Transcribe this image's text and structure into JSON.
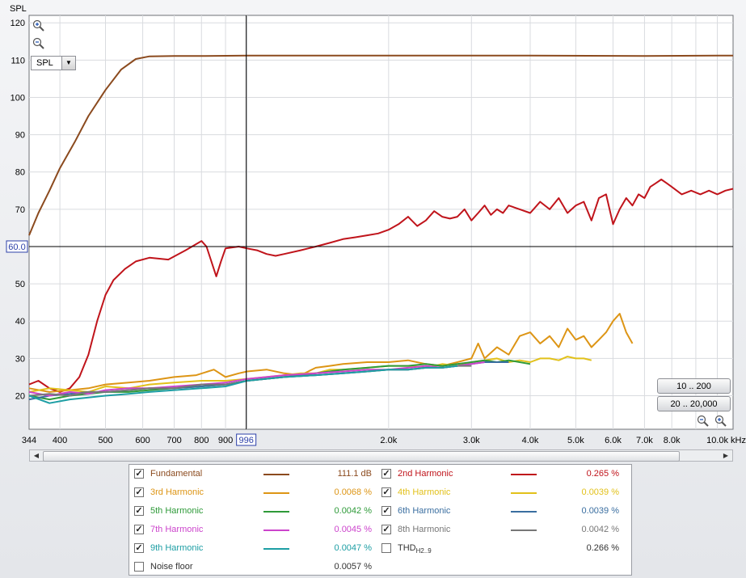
{
  "colors": {
    "fundamental": "#8b4a1e",
    "h2": "#c0141b",
    "h3": "#dd9515",
    "h4": "#e2c11a",
    "h5": "#2e9a39",
    "h6": "#3a6ea0",
    "h7": "#cc44cc",
    "h8": "#777777",
    "h9": "#1d9ea4",
    "label_default": "#333333"
  },
  "chart_data": {
    "type": "line",
    "ylabel": "SPL",
    "xscale": "log",
    "xunit": "kHz",
    "ylim": [
      11,
      122
    ],
    "xlim": [
      344,
      10800
    ],
    "yticks": [
      20,
      30,
      40,
      50,
      60,
      70,
      80,
      90,
      100,
      110,
      120
    ],
    "ytick_labels": [
      "20",
      "30",
      "40",
      "50",
      "60",
      "70",
      "80",
      "90",
      "100",
      "110",
      "120"
    ],
    "xticks": [
      {
        "v": 344,
        "label": "344"
      },
      {
        "v": 400,
        "label": "400"
      },
      {
        "v": 500,
        "label": "500"
      },
      {
        "v": 600,
        "label": "600"
      },
      {
        "v": 700,
        "label": "700"
      },
      {
        "v": 800,
        "label": "800"
      },
      {
        "v": 900,
        "label": "900"
      },
      {
        "v": 2000,
        "label": "2.0k"
      },
      {
        "v": 3000,
        "label": "3.0k"
      },
      {
        "v": 4000,
        "label": "4.0k"
      },
      {
        "v": 5000,
        "label": "5.0k"
      },
      {
        "v": 6000,
        "label": "6.0k"
      },
      {
        "v": 7000,
        "label": "7.0k"
      },
      {
        "v": 8000,
        "label": "8.0k"
      },
      {
        "v": 10000,
        "label": "10.0k"
      }
    ],
    "grid": true,
    "cursor": {
      "x": 996,
      "x_label": "996",
      "y": 60,
      "y_label": "60.0"
    },
    "series": [
      {
        "key": "fundamental",
        "x": [
          344,
          360,
          380,
          400,
          430,
          460,
          500,
          540,
          580,
          620,
          700,
          800,
          1000,
          2000,
          4000,
          7000,
          10000,
          10800
        ],
        "y": [
          63,
          69,
          75,
          81,
          88,
          95,
          102,
          107.5,
          110.3,
          111,
          111.1,
          111.1,
          111.2,
          111.2,
          111.2,
          111.1,
          111.2,
          111.2
        ]
      },
      {
        "key": "h2",
        "x": [
          344,
          360,
          380,
          400,
          420,
          440,
          460,
          480,
          500,
          520,
          550,
          580,
          620,
          680,
          740,
          800,
          820,
          860,
          880,
          900,
          960,
          1000,
          1050,
          1100,
          1150,
          1200,
          1300,
          1400,
          1500,
          1600,
          1700,
          1800,
          1900,
          2000,
          2100,
          2200,
          2300,
          2400,
          2500,
          2600,
          2700,
          2800,
          2900,
          3000,
          3100,
          3200,
          3300,
          3400,
          3500,
          3600,
          3800,
          4000,
          4200,
          4400,
          4600,
          4800,
          5000,
          5200,
          5400,
          5600,
          5800,
          6000,
          6200,
          6400,
          6600,
          6800,
          7000,
          7200,
          7400,
          7600,
          7800,
          8000,
          8400,
          8800,
          9200,
          9600,
          10000,
          10400,
          10800
        ],
        "y": [
          23,
          24,
          22,
          21,
          22,
          25,
          31,
          40,
          47,
          51,
          54,
          56,
          57,
          56.5,
          59,
          61.5,
          60,
          52,
          56,
          59.5,
          60,
          59.5,
          59,
          58,
          57.5,
          58,
          59,
          60,
          61,
          62,
          62.5,
          63,
          63.5,
          64.5,
          66,
          68,
          65.5,
          67,
          69.5,
          68,
          67.5,
          68,
          70,
          67,
          69,
          71,
          68.5,
          70,
          69,
          71,
          70,
          69,
          72,
          70,
          73,
          69,
          71,
          72,
          67,
          73,
          74,
          66,
          70,
          73,
          71,
          74,
          73,
          76,
          77,
          78,
          77,
          76,
          74,
          75,
          74,
          75,
          74,
          75,
          75.5
        ]
      },
      {
        "key": "h3",
        "x": [
          344,
          380,
          420,
          460,
          500,
          560,
          620,
          700,
          780,
          850,
          900,
          960,
          1000,
          1100,
          1200,
          1300,
          1400,
          1500,
          1600,
          1800,
          2000,
          2200,
          2400,
          2600,
          2800,
          3000,
          3100,
          3200,
          3400,
          3600,
          3800,
          4000,
          4200,
          4400,
          4600,
          4800,
          5000,
          5200,
          5400,
          5600,
          5800,
          6000,
          6200,
          6400,
          6600
        ],
        "y": [
          22,
          21,
          21.5,
          22,
          23,
          23.5,
          24,
          25,
          25.5,
          27,
          25,
          26,
          26.5,
          27,
          26,
          25.5,
          27.5,
          28,
          28.5,
          29,
          29,
          29.5,
          28.5,
          28,
          29,
          30,
          34,
          30,
          33,
          31,
          36,
          37,
          34,
          36,
          33,
          38,
          35,
          36,
          33,
          35,
          37,
          40,
          42,
          37,
          34
        ]
      },
      {
        "key": "h4",
        "x": [
          344,
          380,
          420,
          460,
          500,
          560,
          620,
          700,
          800,
          900,
          1000,
          1100,
          1200,
          1300,
          1400,
          1500,
          1600,
          1800,
          2000,
          2200,
          2400,
          2600,
          2800,
          3000,
          3200,
          3400,
          3600,
          3800,
          4000,
          4200,
          4400,
          4600,
          4800,
          5000,
          5200,
          5400
        ],
        "y": [
          21,
          22,
          21.5,
          21,
          22.5,
          22,
          23,
          23.5,
          24,
          24,
          24.5,
          25,
          25.5,
          26,
          26,
          27,
          27,
          27.5,
          28,
          28,
          27.5,
          28.5,
          28,
          29,
          29.5,
          30,
          29,
          29.5,
          29,
          30,
          30,
          29.5,
          30.5,
          30,
          30,
          29.5
        ]
      },
      {
        "key": "h5",
        "x": [
          344,
          380,
          420,
          460,
          500,
          560,
          620,
          700,
          800,
          900,
          1000,
          1200,
          1400,
          1600,
          1800,
          2000,
          2200,
          2400,
          2600,
          2800,
          3000,
          3200,
          3400,
          3600,
          3800,
          4000
        ],
        "y": [
          20,
          19,
          20,
          20.5,
          21,
          21,
          21.5,
          22,
          22.5,
          23,
          24,
          25,
          26,
          27,
          27.5,
          28,
          28,
          28.5,
          28,
          28.5,
          29,
          29.5,
          29,
          29.5,
          29,
          28.5
        ]
      },
      {
        "key": "h6",
        "x": [
          344,
          380,
          420,
          460,
          500,
          560,
          620,
          700,
          800,
          900,
          1000,
          1200,
          1400,
          1600,
          1800,
          2000,
          2200,
          2400,
          2600,
          2800,
          3000,
          3200,
          3400,
          3600
        ],
        "y": [
          19,
          20,
          20.5,
          21,
          21,
          21.5,
          22,
          22,
          22.5,
          23,
          24,
          25,
          25.5,
          26,
          26.5,
          27,
          27,
          27.5,
          27.5,
          28,
          28.5,
          29,
          29,
          29
        ]
      },
      {
        "key": "h7",
        "x": [
          344,
          380,
          420,
          460,
          500,
          560,
          620,
          700,
          800,
          900,
          1000,
          1200,
          1400,
          1600,
          1800,
          2000,
          2200,
          2400,
          2600,
          2800,
          3000,
          3200
        ],
        "y": [
          21,
          20,
          21,
          20.5,
          21.5,
          22,
          22,
          22.5,
          23,
          23.5,
          24.5,
          25.5,
          26,
          26.5,
          27,
          27,
          27.5,
          28,
          27.5,
          28,
          28.5,
          29
        ]
      },
      {
        "key": "h8",
        "x": [
          344,
          380,
          420,
          460,
          500,
          560,
          620,
          700,
          800,
          900,
          1000,
          1200,
          1400,
          1600,
          1800,
          2000,
          2200,
          2400,
          2600,
          2800,
          3000
        ],
        "y": [
          20,
          20.5,
          20,
          21,
          21,
          21.5,
          22,
          22,
          23,
          23,
          24,
          25,
          25.5,
          26,
          26.5,
          27,
          27,
          27.5,
          27.5,
          28,
          28
        ]
      },
      {
        "key": "h9",
        "x": [
          344,
          380,
          420,
          460,
          500,
          560,
          620,
          700,
          800,
          900,
          1000,
          1200,
          1400,
          1600,
          1800,
          2000,
          2200,
          2400,
          2600,
          2800
        ],
        "y": [
          20,
          18,
          19,
          19.5,
          20,
          20.5,
          21,
          21.5,
          22,
          22.5,
          24,
          25,
          25.5,
          26,
          26.5,
          27,
          27,
          27.5,
          27.5,
          28
        ]
      }
    ]
  },
  "plot_controls": {
    "spl_select_value": "SPL",
    "range_btn_1": "10 .. 200",
    "range_btn_2": "20 .. 20,000"
  },
  "legend": {
    "items": [
      {
        "key": "fundamental",
        "name": "Fundamental",
        "checked": true,
        "value": "111.1 dB"
      },
      {
        "key": "h2",
        "name": "2nd Harmonic",
        "checked": true,
        "value": "0.265 %"
      },
      {
        "key": "h3",
        "name": "3rd Harmonic",
        "checked": true,
        "value": "0.0068 %"
      },
      {
        "key": "h4",
        "name": "4th Harmonic",
        "checked": true,
        "value": "0.0039 %"
      },
      {
        "key": "h5",
        "name": "5th Harmonic",
        "checked": true,
        "value": "0.0042 %"
      },
      {
        "key": "h6",
        "name": "6th Harmonic",
        "checked": true,
        "value": "0.0039 %"
      },
      {
        "key": "h7",
        "name": "7th Harmonic",
        "checked": true,
        "value": "0.0045 %"
      },
      {
        "key": "h8",
        "name": "8th Harmonic",
        "checked": true,
        "value": "0.0042 %"
      },
      {
        "key": "h9",
        "name": "9th Harmonic",
        "checked": true,
        "value": "0.0047 %"
      },
      {
        "key": "thd",
        "name": "THD",
        "sub": "H2..9",
        "checked": false,
        "value": "0.266 %"
      },
      {
        "key": "noise",
        "name": "Noise floor",
        "checked": false,
        "value": "0.0057 %"
      }
    ]
  }
}
